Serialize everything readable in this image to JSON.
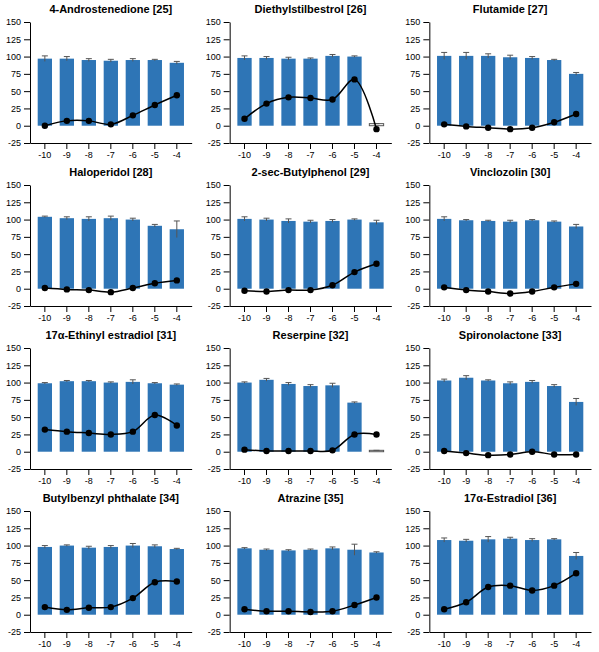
{
  "chart_data": [
    {
      "type": "bar",
      "title": "4-Androstenedione [25]",
      "categories": [
        "-10",
        "-9",
        "-8",
        "-7",
        "-6",
        "-5",
        "-4"
      ],
      "ylim": [
        -25,
        150
      ],
      "yticks": [
        -25,
        0,
        25,
        50,
        75,
        100,
        125,
        150
      ],
      "series": [
        {
          "type": "bar",
          "color": "#2e75b6",
          "values": [
            97,
            97,
            95,
            94,
            95,
            95,
            91
          ],
          "errors": [
            4,
            3,
            2,
            2,
            2,
            1,
            2
          ]
        },
        {
          "type": "line",
          "color": "#000000",
          "marker": "circle",
          "values": [
            0,
            7,
            7,
            2,
            15,
            30,
            44
          ]
        }
      ]
    },
    {
      "type": "bar",
      "title": "Diethylstilbestrol [26]",
      "categories": [
        "-10",
        "-9",
        "-8",
        "-7",
        "-6",
        "-5",
        "-4"
      ],
      "ylim": [
        -25,
        150
      ],
      "yticks": [
        -25,
        0,
        25,
        50,
        75,
        100,
        125,
        150
      ],
      "series": [
        {
          "type": "bar",
          "colors": [
            "#2e75b6",
            "#2e75b6",
            "#2e75b6",
            "#2e75b6",
            "#2e75b6",
            "#2e75b6",
            "#ffffff"
          ],
          "values": [
            98,
            98,
            97,
            97,
            101,
            100,
            3
          ],
          "errors": [
            3,
            2,
            2,
            1,
            2,
            1,
            0
          ]
        },
        {
          "type": "line",
          "color": "#000000",
          "marker": "circle",
          "values": [
            10,
            32,
            41,
            40,
            38,
            67,
            -5
          ]
        }
      ]
    },
    {
      "type": "bar",
      "title": "Flutamide [27]",
      "categories": [
        "-10",
        "-9",
        "-8",
        "-7",
        "-6",
        "-5",
        "-4"
      ],
      "ylim": [
        -25,
        150
      ],
      "yticks": [
        -25,
        0,
        25,
        50,
        75,
        100,
        125,
        150
      ],
      "series": [
        {
          "type": "bar",
          "color": "#2e75b6",
          "values": [
            101,
            101,
            101,
            99,
            98,
            95,
            75
          ],
          "errors": [
            5,
            5,
            3,
            3,
            2,
            1,
            2
          ]
        },
        {
          "type": "line",
          "color": "#000000",
          "marker": "circle",
          "values": [
            2,
            -1,
            -3,
            -5,
            -3,
            5,
            17
          ]
        }
      ]
    },
    {
      "type": "bar",
      "title": "Haloperidol [28]",
      "categories": [
        "-10",
        "-9",
        "-8",
        "-7",
        "-6",
        "-5",
        "-4"
      ],
      "ylim": [
        -25,
        150
      ],
      "yticks": [
        -25,
        0,
        25,
        50,
        75,
        100,
        125,
        150
      ],
      "series": [
        {
          "type": "bar",
          "color": "#2e75b6",
          "values": [
            104,
            102,
            101,
            102,
            100,
            91,
            86
          ],
          "errors": [
            1,
            2,
            3,
            3,
            2,
            2,
            12
          ]
        },
        {
          "type": "line",
          "color": "#000000",
          "marker": "circle",
          "values": [
            1,
            -1,
            -2,
            -5,
            1,
            8,
            12
          ]
        }
      ]
    },
    {
      "type": "bar",
      "title": "2-sec-Butylphenol [29]",
      "categories": [
        "-10",
        "-9",
        "-8",
        "-7",
        "-6",
        "-5",
        "-4"
      ],
      "ylim": [
        -25,
        150
      ],
      "yticks": [
        -25,
        0,
        25,
        50,
        75,
        100,
        125,
        150
      ],
      "series": [
        {
          "type": "bar",
          "color": "#2e75b6",
          "values": [
            101,
            100,
            98,
            97,
            98,
            100,
            96
          ],
          "errors": [
            3,
            2,
            3,
            2,
            2,
            1,
            3
          ]
        },
        {
          "type": "line",
          "color": "#000000",
          "marker": "circle",
          "values": [
            -3,
            -4,
            -2,
            -2,
            5,
            24,
            36
          ]
        }
      ]
    },
    {
      "type": "bar",
      "title": "Vinclozolin [30]",
      "categories": [
        "-10",
        "-9",
        "-8",
        "-7",
        "-6",
        "-5",
        "-4"
      ],
      "ylim": [
        -25,
        150
      ],
      "yticks": [
        -25,
        0,
        25,
        50,
        75,
        100,
        125,
        150
      ],
      "series": [
        {
          "type": "bar",
          "color": "#2e75b6",
          "values": [
            101,
            99,
            98,
            97,
            99,
            97,
            90
          ],
          "errors": [
            3,
            1,
            1,
            2,
            1,
            1,
            3
          ]
        },
        {
          "type": "line",
          "color": "#000000",
          "marker": "circle",
          "values": [
            2,
            -2,
            -4,
            -7,
            -4,
            2,
            7
          ]
        }
      ]
    },
    {
      "type": "bar",
      "title": "17α-Ethinyl estradiol [31]",
      "categories": [
        "-10",
        "-9",
        "-8",
        "-7",
        "-6",
        "-5",
        "-4"
      ],
      "ylim": [
        -25,
        150
      ],
      "yticks": [
        -25,
        0,
        25,
        50,
        75,
        100,
        125,
        150
      ],
      "series": [
        {
          "type": "bar",
          "color": "#2e75b6",
          "values": [
            99,
            102,
            102,
            100,
            101,
            99,
            97
          ],
          "errors": [
            1,
            1,
            1,
            1,
            3,
            1,
            1
          ]
        },
        {
          "type": "line",
          "color": "#000000",
          "marker": "circle",
          "values": [
            32,
            29,
            27,
            25,
            29,
            53,
            38
          ]
        }
      ]
    },
    {
      "type": "bar",
      "title": "Reserpine [32]",
      "categories": [
        "-10",
        "-9",
        "-8",
        "-7",
        "-6",
        "-5",
        "-4"
      ],
      "ylim": [
        -25,
        150
      ],
      "yticks": [
        -25,
        0,
        25,
        50,
        75,
        100,
        125,
        150
      ],
      "series": [
        {
          "type": "bar",
          "colors": [
            "#2e75b6",
            "#2e75b6",
            "#2e75b6",
            "#2e75b6",
            "#2e75b6",
            "#2e75b6",
            "#ffffff"
          ],
          "values": [
            100,
            104,
            98,
            95,
            96,
            71,
            2
          ],
          "errors": [
            1,
            2,
            2,
            2,
            3,
            1,
            0
          ]
        },
        {
          "type": "line",
          "color": "#000000",
          "marker": "circle",
          "values": [
            3,
            1,
            1,
            1,
            2,
            25,
            25
          ]
        }
      ]
    },
    {
      "type": "bar",
      "title": "Spironolactone [33]",
      "categories": [
        "-10",
        "-9",
        "-8",
        "-7",
        "-6",
        "-5",
        "-4"
      ],
      "ylim": [
        -25,
        150
      ],
      "yticks": [
        -25,
        0,
        25,
        50,
        75,
        100,
        125,
        150
      ],
      "series": [
        {
          "type": "bar",
          "color": "#2e75b6",
          "values": [
            103,
            107,
            103,
            99,
            101,
            95,
            72
          ],
          "errors": [
            2,
            3,
            1,
            2,
            2,
            2,
            5
          ]
        },
        {
          "type": "line",
          "color": "#000000",
          "marker": "circle",
          "values": [
            1,
            -2,
            -5,
            -4,
            0,
            -4,
            -4
          ]
        }
      ]
    },
    {
      "type": "bar",
      "title": "Butylbenzyl phthalate [34]",
      "categories": [
        "-10",
        "-9",
        "-8",
        "-7",
        "-6",
        "-5",
        "-4"
      ],
      "ylim": [
        -25,
        150
      ],
      "yticks": [
        -25,
        0,
        25,
        50,
        75,
        100,
        125,
        150
      ],
      "series": [
        {
          "type": "bar",
          "color": "#2e75b6",
          "values": [
            98,
            100,
            97,
            98,
            100,
            99,
            95
          ],
          "errors": [
            2,
            1,
            2,
            2,
            3,
            2,
            1
          ]
        },
        {
          "type": "line",
          "color": "#000000",
          "marker": "circle",
          "values": [
            11,
            7,
            10,
            11,
            24,
            47,
            48
          ]
        }
      ]
    },
    {
      "type": "bar",
      "title": "Atrazine [35]",
      "categories": [
        "-10",
        "-9",
        "-8",
        "-7",
        "-6",
        "-5",
        "-4"
      ],
      "ylim": [
        -25,
        150
      ],
      "yticks": [
        -25,
        0,
        25,
        50,
        75,
        100,
        125,
        150
      ],
      "series": [
        {
          "type": "bar",
          "color": "#2e75b6",
          "values": [
            96,
            94,
            93,
            94,
            96,
            94,
            90
          ],
          "errors": [
            1,
            1,
            1,
            1,
            2,
            8,
            1
          ]
        },
        {
          "type": "line",
          "color": "#000000",
          "marker": "circle",
          "values": [
            8,
            5,
            5,
            4,
            5,
            14,
            25
          ]
        }
      ]
    },
    {
      "type": "bar",
      "title": "17α-Estradiol [36]",
      "categories": [
        "-10",
        "-9",
        "-8",
        "-7",
        "-6",
        "-5",
        "-4"
      ],
      "ylim": [
        -25,
        150
      ],
      "yticks": [
        -25,
        0,
        25,
        50,
        75,
        100,
        125,
        150
      ],
      "series": [
        {
          "type": "bar",
          "color": "#2e75b6",
          "values": [
            108,
            107,
            109,
            110,
            108,
            109,
            85
          ],
          "errors": [
            3,
            2,
            4,
            2,
            2,
            1,
            5
          ]
        },
        {
          "type": "line",
          "color": "#000000",
          "marker": "circle",
          "values": [
            8,
            18,
            40,
            42,
            35,
            42,
            60
          ]
        }
      ]
    }
  ]
}
